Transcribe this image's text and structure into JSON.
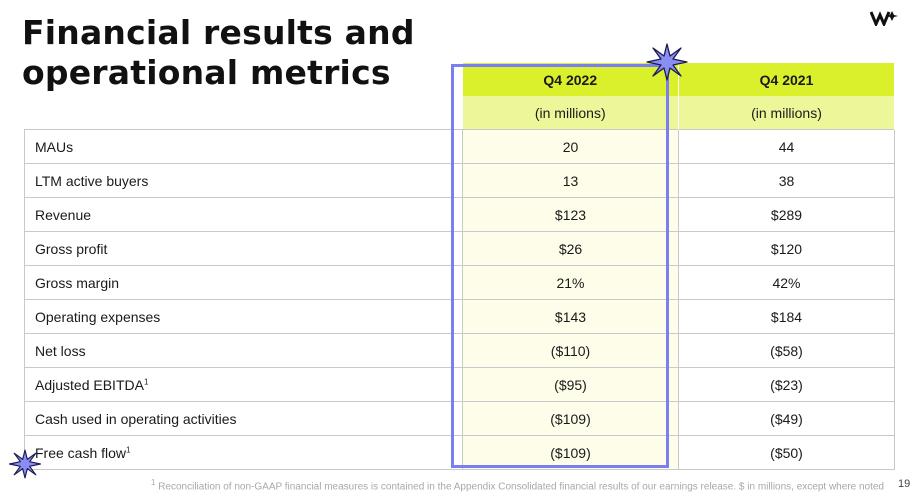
{
  "title_lines": [
    "Financial results and",
    "operational metrics"
  ],
  "columns": [
    {
      "period": "Q4 2022",
      "unit": "(in millions)"
    },
    {
      "period": "Q4 2021",
      "unit": "(in millions)"
    }
  ],
  "rows": [
    {
      "label": "MAUs",
      "note": "",
      "q4_2022": "20",
      "q4_2021": "44"
    },
    {
      "label": "LTM active buyers",
      "note": "",
      "q4_2022": "13",
      "q4_2021": "38"
    },
    {
      "label": "Revenue",
      "note": "",
      "q4_2022": "$123",
      "q4_2021": "$289"
    },
    {
      "label": "Gross profit",
      "note": "",
      "q4_2022": "$26",
      "q4_2021": "$120"
    },
    {
      "label": "Gross margin",
      "note": "",
      "q4_2022": "21%",
      "q4_2021": "42%"
    },
    {
      "label": "Operating expenses",
      "note": "",
      "q4_2022": "$143",
      "q4_2021": "$184"
    },
    {
      "label": "Net loss",
      "note": "",
      "q4_2022": "($110)",
      "q4_2021": "($58)"
    },
    {
      "label": "Adjusted EBITDA",
      "note": "1",
      "q4_2022": "($95)",
      "q4_2021": "($23)"
    },
    {
      "label": "Cash used in operating activities",
      "note": "",
      "q4_2022": "($109)",
      "q4_2021": "($49)"
    },
    {
      "label": "Free cash flow",
      "note": "1",
      "q4_2022": "($109)",
      "q4_2021": "($50)"
    }
  ],
  "footnote": {
    "marker": "1",
    "text": "Reconciliation of non-GAAP financial measures is contained in the Appendix Consolidated financial results of our earnings release. $ in millions, except where noted"
  },
  "page_number": "19",
  "colors": {
    "header_lime": "#d9f02b",
    "subheader_lime": "#edf79a",
    "highlight_purple": "#7b7ef0",
    "star_fill": "#8a8df2"
  },
  "icons": [
    "logo-mark-icon",
    "sparkle-star-icon"
  ]
}
